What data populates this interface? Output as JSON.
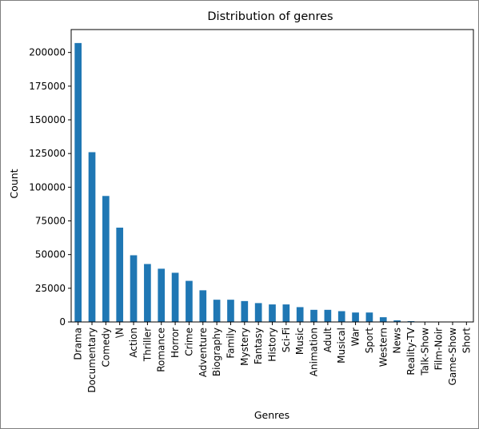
{
  "chart_data": {
    "type": "bar",
    "title": "Distribution of genres",
    "xlabel": "Genres",
    "ylabel": "Count",
    "ylim": [
      0,
      217000
    ],
    "yticks": [
      0,
      25000,
      50000,
      75000,
      100000,
      125000,
      150000,
      175000,
      200000
    ],
    "grid": false,
    "legend": "none",
    "bar_color": "#1f77b4",
    "categories": [
      "Drama",
      "Documentary",
      "Comedy",
      "\\N",
      "Action",
      "Thriller",
      "Romance",
      "Horror",
      "Crime",
      "Adventure",
      "Biography",
      "Family",
      "Mystery",
      "Fantasy",
      "History",
      "Sci-Fi",
      "Music",
      "Animation",
      "Adult",
      "Musical",
      "War",
      "Sport",
      "Western",
      "News",
      "Reality-TV",
      "Talk-Show",
      "Film-Noir",
      "Game-Show",
      "Short"
    ],
    "values": [
      207000,
      126000,
      93500,
      70000,
      49500,
      43000,
      39500,
      36500,
      30500,
      23500,
      16500,
      16500,
      15500,
      14000,
      13000,
      13000,
      11000,
      9000,
      9000,
      8000,
      7000,
      7000,
      3500,
      1200,
      600,
      200,
      150,
      100,
      50
    ]
  }
}
